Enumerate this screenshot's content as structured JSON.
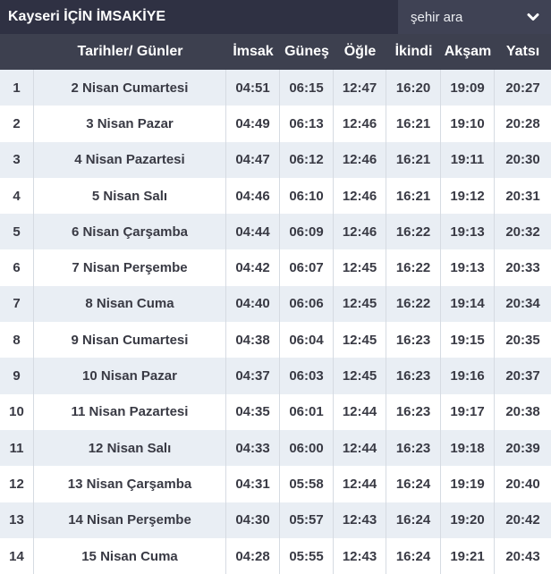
{
  "title_bar": {
    "title": "Kayseri İÇİN İMSAKİYE",
    "search": {
      "label": "şehir ara",
      "icon": "chevron-down-icon"
    }
  },
  "colors": {
    "topbar_bg": "#2f3143",
    "search_box_bg": "#3f4254",
    "header_row_bg": "#3d404f",
    "header_text": "#ffffff",
    "row_alt_bg": "#e9eef4",
    "row_bg": "#ffffff",
    "body_text": "#393a44",
    "column_divider": "#d6dbe2"
  },
  "table": {
    "headers": [
      "Tarihler/ Günler",
      "İmsak",
      "Güneş",
      "Öğle",
      "İkindi",
      "Akşam",
      "Yatsı"
    ],
    "rows": [
      {
        "num": "1",
        "date": "2 Nisan Cumartesi",
        "times": [
          "04:51",
          "06:15",
          "12:47",
          "16:20",
          "19:09",
          "20:27"
        ]
      },
      {
        "num": "2",
        "date": "3 Nisan Pazar",
        "times": [
          "04:49",
          "06:13",
          "12:46",
          "16:21",
          "19:10",
          "20:28"
        ]
      },
      {
        "num": "3",
        "date": "4 Nisan Pazartesi",
        "times": [
          "04:47",
          "06:12",
          "12:46",
          "16:21",
          "19:11",
          "20:30"
        ]
      },
      {
        "num": "4",
        "date": "5 Nisan Salı",
        "times": [
          "04:46",
          "06:10",
          "12:46",
          "16:21",
          "19:12",
          "20:31"
        ]
      },
      {
        "num": "5",
        "date": "6 Nisan Çarşamba",
        "times": [
          "04:44",
          "06:09",
          "12:46",
          "16:22",
          "19:13",
          "20:32"
        ]
      },
      {
        "num": "6",
        "date": "7 Nisan Perşembe",
        "times": [
          "04:42",
          "06:07",
          "12:45",
          "16:22",
          "19:13",
          "20:33"
        ]
      },
      {
        "num": "7",
        "date": "8 Nisan Cuma",
        "times": [
          "04:40",
          "06:06",
          "12:45",
          "16:22",
          "19:14",
          "20:34"
        ]
      },
      {
        "num": "8",
        "date": "9 Nisan Cumartesi",
        "times": [
          "04:38",
          "06:04",
          "12:45",
          "16:23",
          "19:15",
          "20:35"
        ]
      },
      {
        "num": "9",
        "date": "10 Nisan Pazar",
        "times": [
          "04:37",
          "06:03",
          "12:45",
          "16:23",
          "19:16",
          "20:37"
        ]
      },
      {
        "num": "10",
        "date": "11 Nisan Pazartesi",
        "times": [
          "04:35",
          "06:01",
          "12:44",
          "16:23",
          "19:17",
          "20:38"
        ]
      },
      {
        "num": "11",
        "date": "12 Nisan Salı",
        "times": [
          "04:33",
          "06:00",
          "12:44",
          "16:23",
          "19:18",
          "20:39"
        ]
      },
      {
        "num": "12",
        "date": "13 Nisan Çarşamba",
        "times": [
          "04:31",
          "05:58",
          "12:44",
          "16:24",
          "19:19",
          "20:40"
        ]
      },
      {
        "num": "13",
        "date": "14 Nisan Perşembe",
        "times": [
          "04:30",
          "05:57",
          "12:43",
          "16:24",
          "19:20",
          "20:42"
        ]
      },
      {
        "num": "14",
        "date": "15 Nisan Cuma",
        "times": [
          "04:28",
          "05:55",
          "12:43",
          "16:24",
          "19:21",
          "20:43"
        ]
      }
    ]
  }
}
